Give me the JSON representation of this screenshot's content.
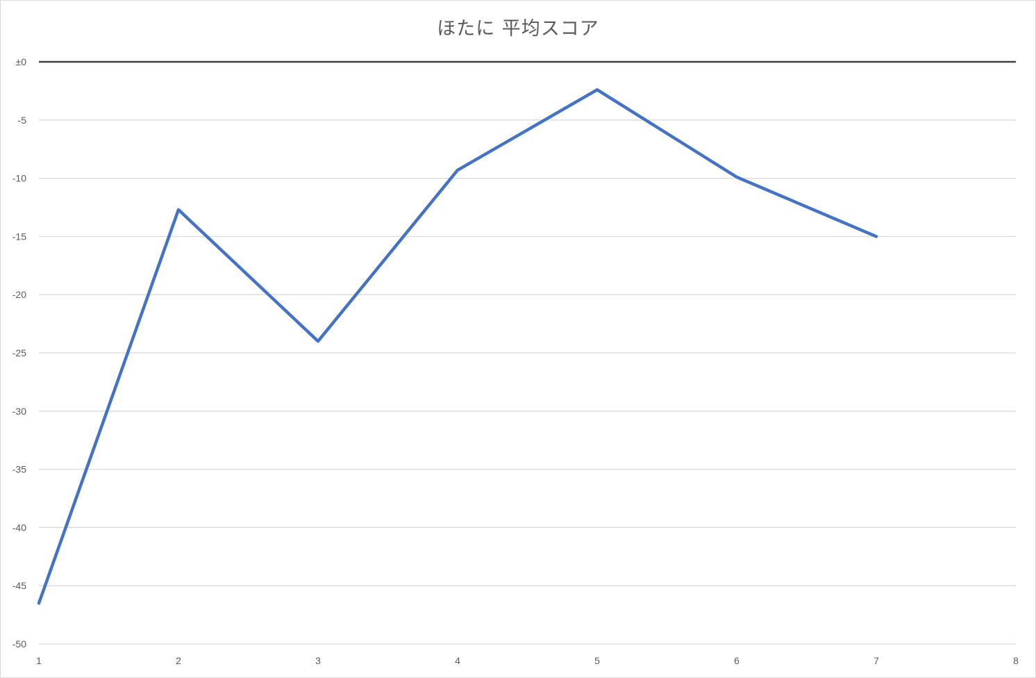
{
  "chart_data": {
    "type": "line",
    "title": "ほたに 平均スコア",
    "xlabel": "",
    "ylabel": "",
    "x": [
      1,
      2,
      3,
      4,
      5,
      6,
      7
    ],
    "series": [
      {
        "values": [
          -46.5,
          -12.7,
          -24.0,
          -9.3,
          -2.4,
          -9.9,
          -15.0
        ],
        "color": "#4472c4"
      }
    ],
    "xlim": [
      1,
      8
    ],
    "ylim": [
      -50,
      0
    ],
    "x_ticks": [
      1,
      2,
      3,
      4,
      5,
      6,
      7,
      8
    ],
    "x_tick_labels": [
      "1",
      "2",
      "3",
      "4",
      "5",
      "6",
      "7",
      "8"
    ],
    "y_ticks": [
      0,
      -5,
      -10,
      -15,
      -20,
      -25,
      -30,
      -35,
      -40,
      -45,
      -50
    ],
    "y_tick_labels": [
      "±0",
      "-5",
      "-10",
      "-15",
      "-20",
      "-25",
      "-30",
      "-35",
      "-40",
      "-45",
      "-50"
    ],
    "grid": true,
    "zero_line": true,
    "grid_color": "#d9d9d9",
    "zero_line_color": "#404040",
    "legend": "none"
  }
}
